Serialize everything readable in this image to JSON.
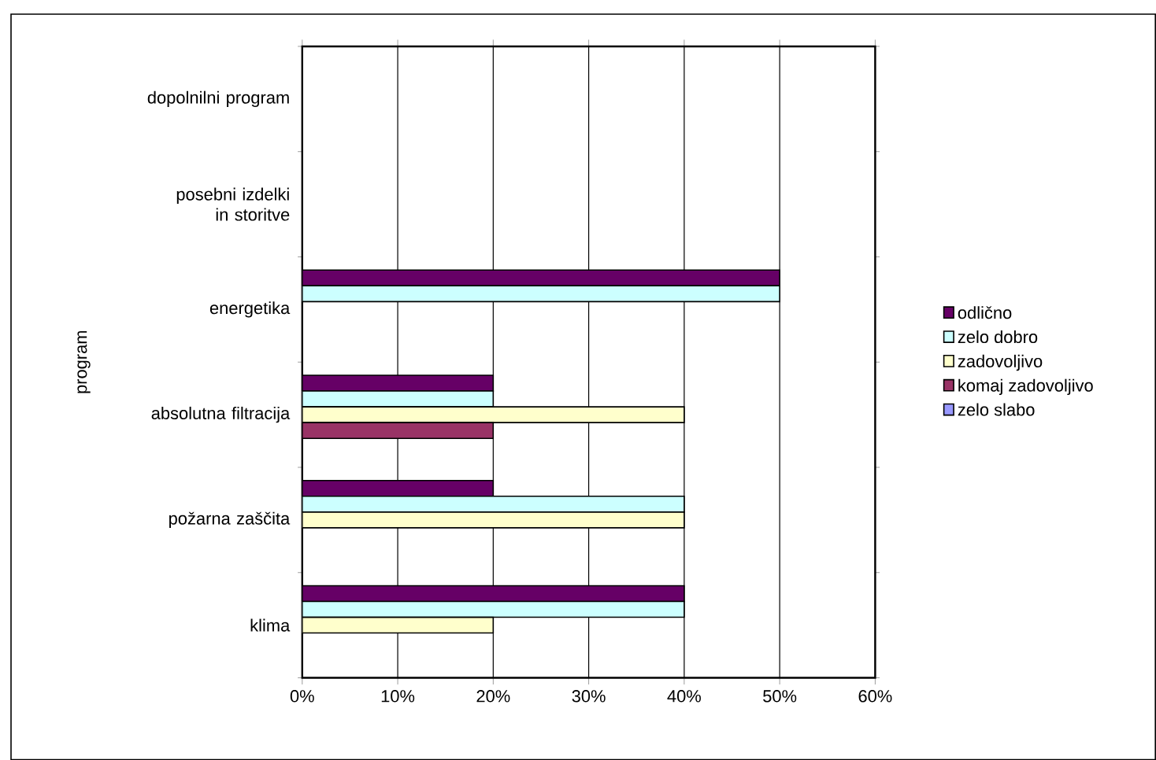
{
  "chart_data": {
    "type": "bar",
    "orientation": "horizontal",
    "ylabel": "program",
    "categories": [
      "dopolnilni program",
      "posebni izdelki in storitve",
      "energetika",
      "absolutna filtracija",
      "požarna zaščita",
      "klima"
    ],
    "series": [
      {
        "name": "odlično",
        "color": "#660066",
        "values": [
          0,
          0,
          50,
          20,
          20,
          40
        ]
      },
      {
        "name": "zelo dobro",
        "color": "#ccffff",
        "values": [
          0,
          0,
          50,
          20,
          40,
          40
        ]
      },
      {
        "name": "zadovoljivo",
        "color": "#ffffcc",
        "values": [
          0,
          0,
          0,
          40,
          40,
          20
        ]
      },
      {
        "name": "komaj zadovoljivo",
        "color": "#993366",
        "values": [
          0,
          0,
          0,
          20,
          0,
          0
        ]
      },
      {
        "name": "zelo slabo",
        "color": "#9999ff",
        "values": [
          0,
          0,
          0,
          0,
          0,
          0
        ]
      }
    ],
    "xlim": [
      0,
      60
    ],
    "xticks": [
      {
        "value": 0,
        "label": "0%"
      },
      {
        "value": 10,
        "label": "10%"
      },
      {
        "value": 20,
        "label": "20%"
      },
      {
        "value": 30,
        "label": "30%"
      },
      {
        "value": 40,
        "label": "40%"
      },
      {
        "value": 50,
        "label": "50%"
      },
      {
        "value": 60,
        "label": "60%"
      }
    ],
    "grid": "x",
    "legend": "right"
  }
}
